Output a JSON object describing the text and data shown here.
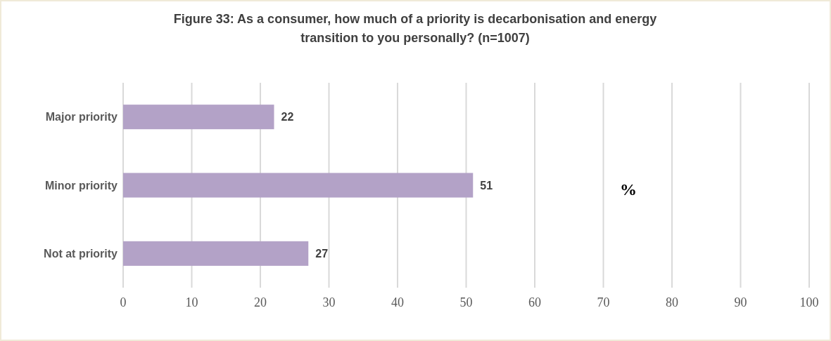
{
  "chart_data": {
    "type": "bar",
    "orientation": "horizontal",
    "title": "Figure 33: As a consumer, how much of a priority is decarbonisation and energy transition to you personally? (n=1007)",
    "categories": [
      "Major priority",
      "Minor priority",
      "Not at priority"
    ],
    "values": [
      22,
      51,
      27
    ],
    "color": "#b3a2c7",
    "xlim": [
      0,
      100
    ],
    "xticks": [
      0,
      10,
      20,
      30,
      40,
      50,
      60,
      70,
      80,
      90,
      100
    ],
    "grid": "x",
    "data_labels": true,
    "annotations": [
      "%"
    ]
  }
}
